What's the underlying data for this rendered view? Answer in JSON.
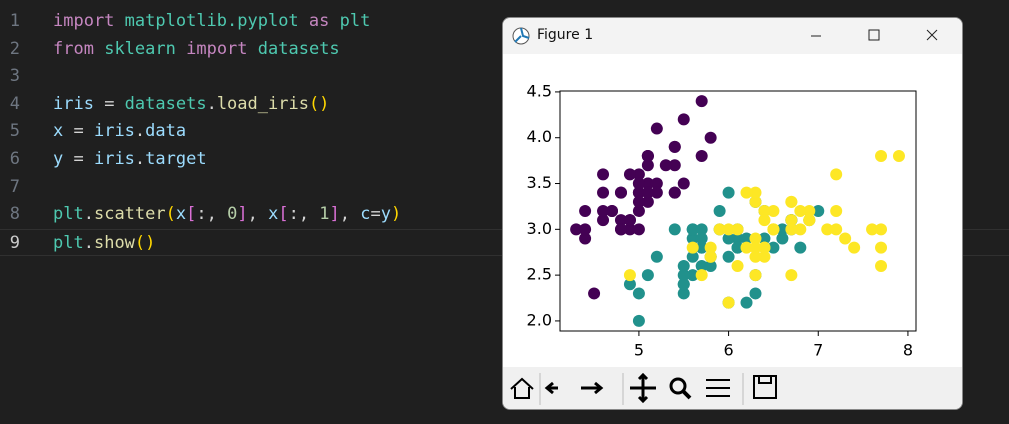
{
  "editor": {
    "lines": [
      {
        "number": "1",
        "tokens": [
          {
            "text": "import",
            "color": "#c586c0"
          },
          {
            "text": " ",
            "color": "#d4d4d4"
          },
          {
            "text": "matplotlib.pyplot",
            "color": "#4ec9b0"
          },
          {
            "text": " ",
            "color": "#d4d4d4"
          },
          {
            "text": "as",
            "color": "#c586c0"
          },
          {
            "text": " ",
            "color": "#d4d4d4"
          },
          {
            "text": "plt",
            "color": "#4ec9b0"
          }
        ]
      },
      {
        "number": "2",
        "tokens": [
          {
            "text": "from",
            "color": "#c586c0"
          },
          {
            "text": " ",
            "color": "#d4d4d4"
          },
          {
            "text": "sklearn",
            "color": "#4ec9b0"
          },
          {
            "text": " ",
            "color": "#d4d4d4"
          },
          {
            "text": "import",
            "color": "#c586c0"
          },
          {
            "text": " ",
            "color": "#d4d4d4"
          },
          {
            "text": "datasets",
            "color": "#4ec9b0"
          }
        ]
      },
      {
        "number": "3",
        "tokens": []
      },
      {
        "number": "4",
        "tokens": [
          {
            "text": "iris",
            "color": "#9cdcfe"
          },
          {
            "text": " = ",
            "color": "#d4d4d4"
          },
          {
            "text": "datasets",
            "color": "#4ec9b0"
          },
          {
            "text": ".",
            "color": "#d4d4d4"
          },
          {
            "text": "load_iris",
            "color": "#dcdcaa"
          },
          {
            "text": "()",
            "color": "#ffd700"
          }
        ]
      },
      {
        "number": "5",
        "tokens": [
          {
            "text": "x",
            "color": "#9cdcfe"
          },
          {
            "text": " = ",
            "color": "#d4d4d4"
          },
          {
            "text": "iris",
            "color": "#9cdcfe"
          },
          {
            "text": ".",
            "color": "#d4d4d4"
          },
          {
            "text": "data",
            "color": "#9cdcfe"
          }
        ]
      },
      {
        "number": "6",
        "tokens": [
          {
            "text": "y",
            "color": "#9cdcfe"
          },
          {
            "text": " = ",
            "color": "#d4d4d4"
          },
          {
            "text": "iris",
            "color": "#9cdcfe"
          },
          {
            "text": ".",
            "color": "#d4d4d4"
          },
          {
            "text": "target",
            "color": "#9cdcfe"
          }
        ]
      },
      {
        "number": "7",
        "tokens": []
      },
      {
        "number": "8",
        "tokens": [
          {
            "text": "plt",
            "color": "#4ec9b0"
          },
          {
            "text": ".",
            "color": "#d4d4d4"
          },
          {
            "text": "scatter",
            "color": "#dcdcaa"
          },
          {
            "text": "(",
            "color": "#ffd700"
          },
          {
            "text": "x",
            "color": "#9cdcfe"
          },
          {
            "text": "[",
            "color": "#da70d6"
          },
          {
            "text": ":, ",
            "color": "#d4d4d4"
          },
          {
            "text": "0",
            "color": "#b5cea8"
          },
          {
            "text": "]",
            "color": "#da70d6"
          },
          {
            "text": ", ",
            "color": "#d4d4d4"
          },
          {
            "text": "x",
            "color": "#9cdcfe"
          },
          {
            "text": "[",
            "color": "#da70d6"
          },
          {
            "text": ":, ",
            "color": "#d4d4d4"
          },
          {
            "text": "1",
            "color": "#b5cea8"
          },
          {
            "text": "]",
            "color": "#da70d6"
          },
          {
            "text": ", ",
            "color": "#d4d4d4"
          },
          {
            "text": "c",
            "color": "#9cdcfe"
          },
          {
            "text": "=",
            "color": "#d4d4d4"
          },
          {
            "text": "y",
            "color": "#9cdcfe"
          },
          {
            "text": ")",
            "color": "#ffd700"
          }
        ]
      },
      {
        "number": "9",
        "tokens": [
          {
            "text": "plt",
            "color": "#4ec9b0"
          },
          {
            "text": ".",
            "color": "#d4d4d4"
          },
          {
            "text": "show",
            "color": "#dcdcaa"
          },
          {
            "text": "()",
            "color": "#ffd700"
          }
        ]
      }
    ]
  },
  "window": {
    "title": "Figure 1"
  },
  "chart_data": {
    "type": "scatter",
    "xlim": [
      4.12,
      8.09
    ],
    "ylim": [
      1.89,
      4.51
    ],
    "xticks": [
      5,
      6,
      7,
      8
    ],
    "yticks": [
      {
        "value": 2,
        "label": "2.0"
      },
      2.5,
      {
        "value": 3,
        "label": "3.0"
      },
      3.5,
      {
        "value": 4,
        "label": "4.0"
      },
      4.5
    ],
    "series": [
      {
        "color": "#440154",
        "x": [
          5.1,
          4.9,
          4.7,
          4.6,
          5.0,
          5.4,
          4.6,
          5.0,
          4.4,
          4.9,
          5.4,
          4.8,
          4.8,
          4.3,
          5.8,
          5.7,
          5.4,
          5.1,
          5.7,
          5.1,
          5.4,
          5.1,
          4.6,
          5.1,
          4.8,
          5.0,
          5.0,
          5.2,
          5.2,
          4.7,
          4.8,
          5.4,
          5.2,
          5.5,
          4.9,
          5.0,
          5.5,
          4.9,
          4.4,
          5.1,
          5.0,
          4.5,
          4.4,
          5.0,
          5.1,
          4.8,
          5.1,
          4.6,
          5.3,
          5.0
        ],
        "values": [
          3.5,
          3.0,
          3.2,
          3.1,
          3.6,
          3.9,
          3.4,
          3.4,
          2.9,
          3.1,
          3.7,
          3.4,
          3.0,
          3.0,
          4.0,
          4.4,
          3.9,
          3.5,
          3.8,
          3.8,
          3.4,
          3.7,
          3.6,
          3.3,
          3.4,
          3.0,
          3.4,
          3.5,
          3.4,
          3.2,
          3.1,
          3.4,
          4.1,
          4.2,
          3.1,
          3.2,
          3.5,
          3.6,
          3.0,
          3.4,
          3.5,
          2.3,
          3.2,
          3.5,
          3.8,
          3.0,
          3.8,
          3.2,
          3.7,
          3.3
        ]
      },
      {
        "color": "#21918c",
        "x": [
          7.0,
          6.4,
          6.9,
          5.5,
          6.5,
          5.7,
          6.3,
          4.9,
          6.6,
          5.2,
          5.0,
          5.9,
          6.0,
          6.1,
          5.6,
          6.7,
          5.6,
          5.8,
          6.2,
          5.6,
          5.9,
          6.1,
          6.3,
          6.1,
          6.4,
          6.6,
          6.8,
          6.7,
          6.0,
          5.7,
          5.5,
          5.5,
          5.8,
          6.0,
          5.4,
          6.0,
          6.7,
          6.3,
          5.6,
          5.5,
          5.5,
          6.1,
          5.8,
          5.0,
          5.6,
          5.7,
          5.7,
          6.2,
          5.1,
          5.7
        ],
        "values": [
          3.2,
          3.2,
          3.1,
          2.3,
          2.8,
          2.8,
          3.3,
          2.4,
          2.9,
          2.7,
          2.0,
          3.0,
          2.2,
          2.9,
          2.9,
          3.1,
          3.0,
          2.7,
          2.2,
          2.5,
          3.2,
          2.8,
          2.5,
          2.8,
          2.9,
          3.0,
          2.8,
          3.0,
          2.9,
          2.6,
          2.4,
          2.4,
          2.7,
          2.7,
          3.0,
          3.4,
          3.1,
          2.3,
          3.0,
          2.5,
          2.6,
          3.0,
          2.6,
          2.3,
          2.7,
          3.0,
          2.9,
          2.9,
          2.5,
          2.8
        ]
      },
      {
        "color": "#fde725",
        "x": [
          6.3,
          5.8,
          7.1,
          6.3,
          6.5,
          7.6,
          4.9,
          7.3,
          6.7,
          7.2,
          6.5,
          6.4,
          6.8,
          5.7,
          5.8,
          6.4,
          6.5,
          7.7,
          7.7,
          6.0,
          6.9,
          5.6,
          7.7,
          6.3,
          6.7,
          7.2,
          6.2,
          6.1,
          6.4,
          7.2,
          7.4,
          7.9,
          6.4,
          6.3,
          6.1,
          7.7,
          6.3,
          6.4,
          6.0,
          6.9,
          6.7,
          6.9,
          5.8,
          6.8,
          6.7,
          6.7,
          6.3,
          6.5,
          6.2,
          5.9
        ],
        "values": [
          3.3,
          2.7,
          3.0,
          2.9,
          3.0,
          3.0,
          2.5,
          2.9,
          2.5,
          3.6,
          3.2,
          2.7,
          3.0,
          2.5,
          2.8,
          3.2,
          3.0,
          3.8,
          2.6,
          2.2,
          3.2,
          2.8,
          2.8,
          2.7,
          3.3,
          3.2,
          2.8,
          3.0,
          2.8,
          3.0,
          2.8,
          3.8,
          2.8,
          2.8,
          2.6,
          3.0,
          3.4,
          3.1,
          3.0,
          3.1,
          3.1,
          3.1,
          2.7,
          3.2,
          3.3,
          3.0,
          2.5,
          3.0,
          3.4,
          3.0
        ]
      }
    ]
  }
}
